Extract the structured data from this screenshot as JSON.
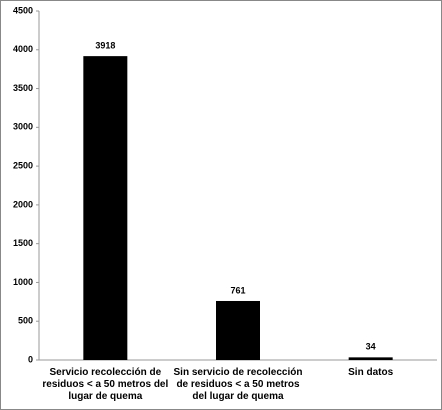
{
  "chart_data": {
    "type": "bar",
    "categories": [
      "Servicio recolección de residuos < a 50 metros del lugar de quema",
      "Sin servicio de recolección de residuos < a 50 metros del lugar de quema",
      "Sin datos"
    ],
    "values": [
      3918,
      761,
      34
    ],
    "color": "#000000",
    "ylim": [
      0,
      4500
    ],
    "yticks": [
      0,
      500,
      1000,
      1500,
      2000,
      2500,
      3000,
      3500,
      4000,
      4500
    ]
  }
}
